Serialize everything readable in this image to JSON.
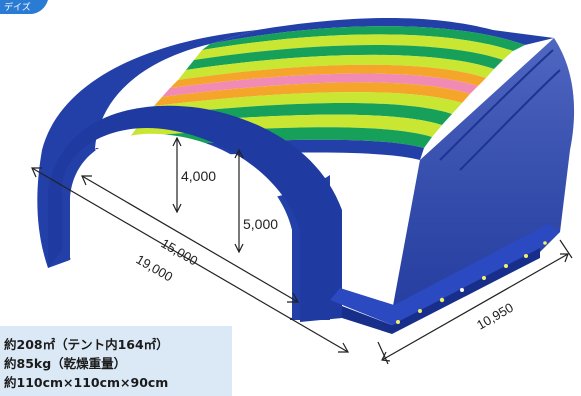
{
  "corner_tab": "デイズ",
  "dimensions": {
    "height_inner": "4,000",
    "height_outer": "5,000",
    "length_inner": "15,000",
    "length_outer": "19,000",
    "width": "10,950"
  },
  "specs": {
    "area": "約208㎡（テント内164㎡）",
    "weight": "約85kg（乾燥重量）",
    "size": "約110cm×110cm×90cm"
  },
  "colors": {
    "dark_blue": "#2340a8",
    "green": "#17a05a",
    "yellow_green": "#c8e632",
    "orange": "#f5a62a",
    "pink": "#f28bb4",
    "spec_background": "#dbe9f7"
  }
}
